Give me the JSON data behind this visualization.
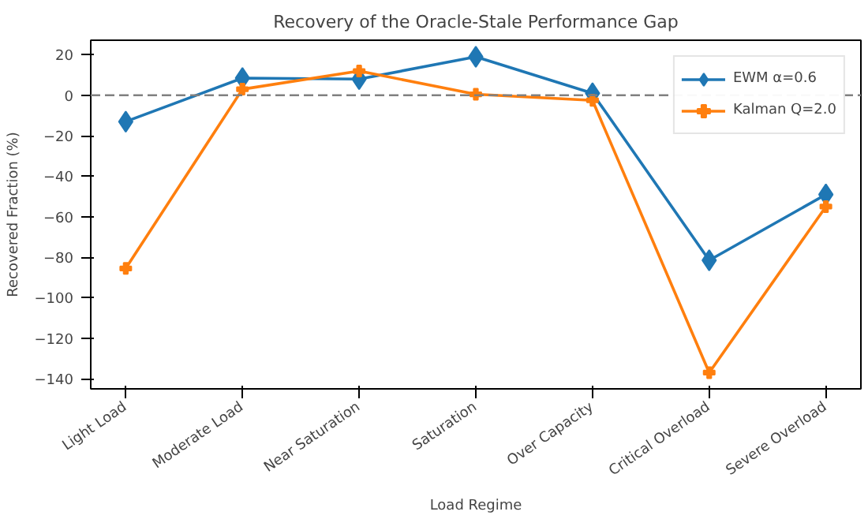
{
  "chart_data": {
    "type": "line",
    "title": "Recovery of the Oracle-Stale Performance Gap",
    "xlabel": "Load Regime",
    "ylabel": "Recovered Fraction (%)",
    "categories": [
      "Light Load",
      "Moderate Load",
      "Near Saturation",
      "Saturation",
      "Over Capacity",
      "Critical Overload",
      "Severe Overload"
    ],
    "series": [
      {
        "name": "EWM α=0.6",
        "color": "#1f77b4",
        "marker": "diamond",
        "values": [
          -13,
          8.5,
          8,
          19,
          1,
          -81.5,
          -49
        ]
      },
      {
        "name": "Kalman Q=2.0",
        "color": "#ff7f0e",
        "marker": "cross",
        "values": [
          -85.5,
          3,
          12,
          0.5,
          -2.5,
          -137,
          -55
        ]
      }
    ],
    "ylim": [
      -145,
      27.2
    ],
    "yticks": [
      {
        "value": -140,
        "label": "−140"
      },
      {
        "value": -120,
        "label": "−120"
      },
      {
        "value": -100,
        "label": "−100"
      },
      {
        "value": -80,
        "label": "−80"
      },
      {
        "value": -60,
        "label": "−60"
      },
      {
        "value": -40,
        "label": "−40"
      },
      {
        "value": -20,
        "label": "−20"
      },
      0,
      20
    ],
    "ref_lines": [
      {
        "axis": "y",
        "value": 0,
        "color": "#808080",
        "line_style": "dashed"
      }
    ],
    "legend": "top right",
    "grid": false,
    "line_style": "solid"
  }
}
